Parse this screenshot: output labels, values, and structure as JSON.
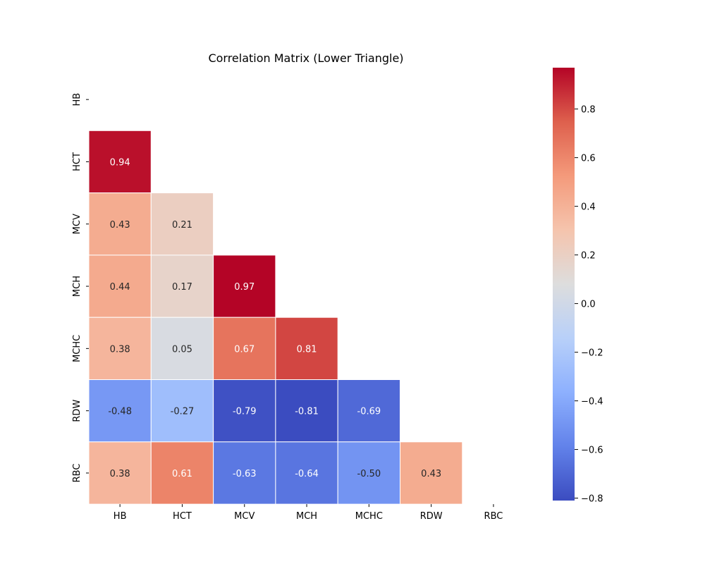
{
  "chart_data": {
    "type": "heatmap",
    "title": "Correlation Matrix (Lower Triangle)",
    "xlabel": "",
    "ylabel": "",
    "x_categories": [
      "HB",
      "HCT",
      "MCV",
      "MCH",
      "MCHC",
      "RDW",
      "RBC"
    ],
    "y_categories": [
      "HB",
      "HCT",
      "MCV",
      "MCH",
      "MCHC",
      "RDW",
      "RBC"
    ],
    "mask": "upper triangle including diagonal",
    "values": [
      [
        null,
        null,
        null,
        null,
        null,
        null,
        null
      ],
      [
        0.94,
        null,
        null,
        null,
        null,
        null,
        null
      ],
      [
        0.43,
        0.21,
        null,
        null,
        null,
        null,
        null
      ],
      [
        0.44,
        0.17,
        0.97,
        null,
        null,
        null,
        null
      ],
      [
        0.38,
        0.05,
        0.67,
        0.81,
        null,
        null,
        null
      ],
      [
        -0.48,
        -0.27,
        -0.79,
        -0.81,
        -0.69,
        null,
        null
      ],
      [
        0.38,
        0.61,
        -0.63,
        -0.64,
        -0.5,
        0.43,
        null
      ]
    ],
    "annotations_format": "0.00",
    "colormap": "coolwarm",
    "color_range": [
      -0.81,
      0.97
    ],
    "colorbar": {
      "ticks": [
        0.8,
        0.6,
        0.4,
        0.2,
        0.0,
        -0.2,
        -0.4,
        -0.6,
        -0.8
      ],
      "tick_labels": [
        "0.8",
        "0.6",
        "0.4",
        "0.2",
        "0.0",
        "−0.2",
        "−0.4",
        "−0.6",
        "−0.8"
      ]
    },
    "grid": false,
    "cell_border_color": "#ffffff"
  }
}
